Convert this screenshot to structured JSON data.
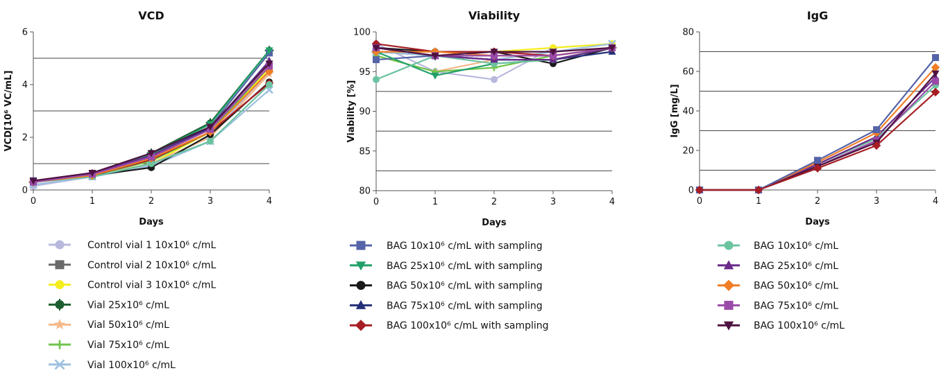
{
  "chart_data": [
    {
      "type": "line",
      "title": "VCD",
      "xlabel": "Days",
      "ylabel": "VCD[10⁶ VC/mL]",
      "x": [
        0,
        1,
        2,
        3,
        4
      ],
      "xlim": [
        0,
        4
      ],
      "ylim": [
        0,
        6
      ],
      "x_ticks": [
        "0",
        "1",
        "2",
        "3",
        "4"
      ],
      "y_ticks": [
        "0",
        "2",
        "4",
        "6"
      ],
      "reference_lines": [
        1,
        3,
        5
      ],
      "series": [
        {
          "key": "cv1",
          "values": [
            0.15,
            0.5,
            0.95,
            2.05,
            4.5
          ]
        },
        {
          "key": "cv2",
          "values": [
            0.3,
            0.55,
            1.2,
            2.2,
            4.6
          ]
        },
        {
          "key": "cv3",
          "values": [
            0.3,
            0.55,
            1.0,
            2.2,
            4.6
          ]
        },
        {
          "key": "v25",
          "values": [
            0.3,
            0.6,
            1.4,
            2.55,
            5.3
          ]
        },
        {
          "key": "v50",
          "values": [
            0.3,
            0.55,
            1.0,
            2.0,
            4.4
          ]
        },
        {
          "key": "v75",
          "values": [
            0.3,
            0.55,
            1.1,
            2.2,
            4.7
          ]
        },
        {
          "key": "v100",
          "values": [
            0.2,
            0.5,
            0.9,
            1.85,
            3.8
          ]
        },
        {
          "key": "bs10",
          "values": [
            0.35,
            0.6,
            1.3,
            2.4,
            5.2
          ]
        },
        {
          "key": "bs25",
          "values": [
            0.3,
            0.55,
            1.35,
            2.5,
            5.3
          ]
        },
        {
          "key": "bs50",
          "values": [
            0.3,
            0.55,
            0.85,
            2.1,
            4.1
          ]
        },
        {
          "key": "bs75",
          "values": [
            0.35,
            0.6,
            1.3,
            2.35,
            4.9
          ]
        },
        {
          "key": "bs100",
          "values": [
            0.3,
            0.55,
            1.15,
            2.2,
            4.05
          ]
        },
        {
          "key": "b10",
          "values": [
            0.3,
            0.5,
            1.0,
            1.85,
            4.0
          ]
        },
        {
          "key": "b25",
          "values": [
            0.35,
            0.65,
            1.3,
            2.3,
            4.9
          ]
        },
        {
          "key": "b50",
          "values": [
            0.3,
            0.55,
            1.2,
            2.2,
            4.5
          ]
        },
        {
          "key": "b75",
          "values": [
            0.3,
            0.6,
            1.25,
            2.3,
            4.7
          ]
        },
        {
          "key": "b100",
          "values": [
            0.35,
            0.65,
            1.4,
            2.4,
            4.8
          ]
        }
      ]
    },
    {
      "type": "line",
      "title": "Viability",
      "xlabel": "Days",
      "ylabel": "Viability [%]",
      "x": [
        0,
        1,
        2,
        3,
        4
      ],
      "xlim": [
        0,
        4
      ],
      "ylim": [
        80,
        100
      ],
      "x_ticks": [
        "0",
        "1",
        "2",
        "3",
        "4"
      ],
      "y_ticks": [
        "80",
        "85",
        "90",
        "95",
        "100"
      ],
      "reference_lines": [
        82.5,
        87.5,
        92.5
      ],
      "series": [
        {
          "key": "cv1",
          "values": [
            98.5,
            95.0,
            94.0,
            98.0,
            98.5
          ]
        },
        {
          "key": "cv2",
          "values": [
            97.5,
            97.0,
            97.0,
            97.0,
            98.0
          ]
        },
        {
          "key": "cv3",
          "values": [
            97.5,
            97.5,
            97.5,
            98.0,
            98.5
          ]
        },
        {
          "key": "v25",
          "values": [
            97.5,
            97.0,
            96.5,
            96.5,
            98.0
          ]
        },
        {
          "key": "v50",
          "values": [
            97.0,
            95.0,
            96.5,
            97.5,
            98.0
          ]
        },
        {
          "key": "v75",
          "values": [
            97.0,
            95.0,
            95.5,
            97.0,
            98.0
          ]
        },
        {
          "key": "v100",
          "values": [
            97.5,
            97.0,
            96.5,
            97.5,
            98.5
          ]
        },
        {
          "key": "bs10",
          "values": [
            96.5,
            97.0,
            96.5,
            96.5,
            98.0
          ]
        },
        {
          "key": "bs25",
          "values": [
            97.5,
            94.5,
            96.0,
            96.5,
            98.0
          ]
        },
        {
          "key": "bs50",
          "values": [
            98.0,
            97.5,
            97.5,
            96.0,
            98.0
          ]
        },
        {
          "key": "bs75",
          "values": [
            98.0,
            97.0,
            96.5,
            96.5,
            97.5
          ]
        },
        {
          "key": "bs100",
          "values": [
            98.5,
            97.5,
            97.5,
            97.0,
            98.0
          ]
        },
        {
          "key": "b10",
          "values": [
            94.0,
            97.0,
            96.0,
            96.5,
            98.0
          ]
        },
        {
          "key": "b25",
          "values": [
            98.0,
            97.0,
            96.5,
            96.5,
            98.0
          ]
        },
        {
          "key": "b50",
          "values": [
            97.5,
            97.5,
            97.0,
            97.0,
            98.0
          ]
        },
        {
          "key": "b75",
          "values": [
            98.0,
            97.0,
            97.0,
            97.0,
            98.0
          ]
        },
        {
          "key": "b100",
          "values": [
            98.0,
            97.0,
            97.5,
            97.5,
            98.0
          ]
        }
      ]
    },
    {
      "type": "line",
      "title": "IgG",
      "xlabel": "Days",
      "ylabel": "IgG [mg/L]",
      "x": [
        0,
        1,
        2,
        3,
        4
      ],
      "xlim": [
        0,
        4
      ],
      "ylim": [
        0,
        80
      ],
      "x_ticks": [
        "0",
        "1",
        "2",
        "3",
        "4"
      ],
      "y_ticks": [
        "0",
        "20",
        "40",
        "60",
        "80"
      ],
      "reference_lines": [
        10,
        30,
        50,
        70
      ],
      "series": [
        {
          "key": "b10",
          "values": [
            0,
            0,
            13,
            26,
            53
          ]
        },
        {
          "key": "b25",
          "values": [
            0,
            0,
            13,
            27,
            57
          ]
        },
        {
          "key": "b50",
          "values": [
            0,
            0,
            14,
            29,
            62
          ]
        },
        {
          "key": "b75",
          "values": [
            0,
            0,
            12,
            25,
            55
          ]
        },
        {
          "key": "b100",
          "values": [
            0,
            0,
            12,
            24,
            59
          ]
        },
        {
          "key": "bs10",
          "values": [
            0,
            0,
            15,
            30.5,
            67
          ]
        },
        {
          "key": "bs100",
          "values": [
            0,
            0,
            11,
            22.5,
            49.5
          ]
        }
      ]
    }
  ],
  "legends": [
    [
      {
        "key": "cv1",
        "label": "Control vial 1 10x10⁶ c/mL"
      },
      {
        "key": "cv2",
        "label": "Control vial 2 10x10⁶ c/mL"
      },
      {
        "key": "cv3",
        "label": "Control vial 3 10x10⁶ c/mL"
      },
      {
        "key": "v25",
        "label": "Vial 25x10⁶ c/mL"
      },
      {
        "key": "v50",
        "label": "Vial 50x10⁶ c/mL"
      },
      {
        "key": "v75",
        "label": "Vial 75x10⁶ c/mL"
      },
      {
        "key": "v100",
        "label": "Vial 100x10⁶ c/mL"
      }
    ],
    [
      {
        "key": "bs10",
        "label": "BAG 10x10⁶ c/mL with sampling"
      },
      {
        "key": "bs25",
        "label": "BAG 25x10⁶ c/mL with sampling"
      },
      {
        "key": "bs50",
        "label": "BAG 50x10⁶ c/mL with sampling"
      },
      {
        "key": "bs75",
        "label": "BAG 75x10⁶ c/mL with sampling"
      },
      {
        "key": "bs100",
        "label": "BAG 100x10⁶ c/mL with sampling"
      }
    ],
    [
      {
        "key": "b10",
        "label": "BAG 10x10⁶ c/mL"
      },
      {
        "key": "b25",
        "label": "BAG 25x10⁶ c/mL"
      },
      {
        "key": "b50",
        "label": "BAG 50x10⁶ c/mL"
      },
      {
        "key": "b75",
        "label": "BAG 75x10⁶ c/mL"
      },
      {
        "key": "b100",
        "label": "BAG 100x10⁶ c/mL"
      }
    ]
  ],
  "series_styles": {
    "cv1": {
      "color": "#b8b8de",
      "marker": "circle"
    },
    "cv2": {
      "color": "#6a6a6a",
      "marker": "square"
    },
    "cv3": {
      "color": "#f5ee1e",
      "marker": "circle"
    },
    "v25": {
      "color": "#1e5e30",
      "marker": "cross-circle"
    },
    "v50": {
      "color": "#f4b98a",
      "marker": "star"
    },
    "v75": {
      "color": "#6fc44a",
      "marker": "plus"
    },
    "v100": {
      "color": "#9cc0e0",
      "marker": "x"
    },
    "bs10": {
      "color": "#5563a8",
      "marker": "square"
    },
    "bs25": {
      "color": "#22a06a",
      "marker": "triangle-down"
    },
    "bs50": {
      "color": "#1a1a1a",
      "marker": "circle"
    },
    "bs75": {
      "color": "#25307a",
      "marker": "triangle-up"
    },
    "bs100": {
      "color": "#a51e24",
      "marker": "diamond"
    },
    "b10": {
      "color": "#6cc3a0",
      "marker": "circle"
    },
    "b25": {
      "color": "#6a2a8a",
      "marker": "triangle-up"
    },
    "b50": {
      "color": "#f07e26",
      "marker": "diamond"
    },
    "b75": {
      "color": "#9a4aa8",
      "marker": "square"
    },
    "b100": {
      "color": "#4e1240",
      "marker": "triangle-down"
    }
  }
}
